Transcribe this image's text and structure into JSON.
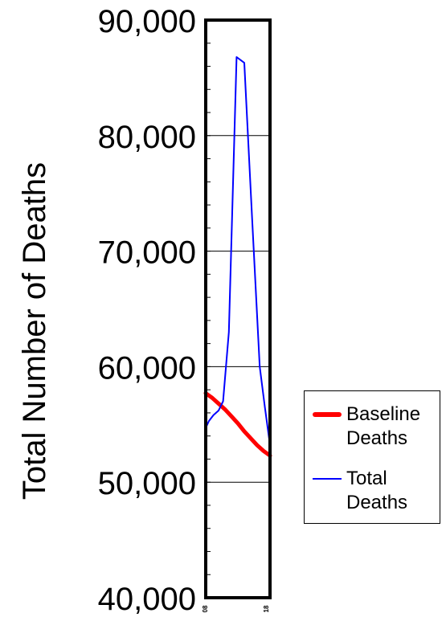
{
  "chart_data": {
    "type": "line",
    "ylabel": "Total Number of  Deaths",
    "ylim": [
      40000,
      90000
    ],
    "yticks": [
      {
        "value": 40000,
        "label": "40,000"
      },
      {
        "value": 50000,
        "label": "50,000"
      },
      {
        "value": 60000,
        "label": "60,000"
      },
      {
        "value": 70000,
        "label": "70,000"
      },
      {
        "value": 80000,
        "label": "80,000"
      },
      {
        "value": 90000,
        "label": "90,000"
      }
    ],
    "xlim": [
      0,
      1
    ],
    "xticks": [
      {
        "value": 0,
        "label": "08"
      },
      {
        "value": 1,
        "label": "18"
      }
    ],
    "series": [
      {
        "name": "Baseline Deaths",
        "color": "#ff0000",
        "x": [
          0,
          0.1,
          0.2,
          0.3,
          0.4,
          0.5,
          0.6,
          0.7,
          0.8,
          0.9,
          1.0
        ],
        "y": [
          57700,
          57300,
          56800,
          56300,
          55700,
          55100,
          54400,
          53800,
          53200,
          52700,
          52300
        ]
      },
      {
        "name": "Total Deaths",
        "color": "#0000ff",
        "x": [
          0,
          0.05,
          0.12,
          0.2,
          0.27,
          0.36,
          0.48,
          0.6,
          0.72,
          0.84,
          0.92,
          1.0
        ],
        "y": [
          54700,
          55300,
          55800,
          56200,
          57000,
          63000,
          86800,
          86300,
          73000,
          60000,
          56500,
          53200
        ]
      }
    ],
    "grid": true,
    "legend_position": "right"
  },
  "legend": {
    "items": [
      {
        "label_line1": "Baseline",
        "label_line2": "Deaths"
      },
      {
        "label_line1": "Total",
        "label_line2": "Deaths"
      }
    ]
  }
}
